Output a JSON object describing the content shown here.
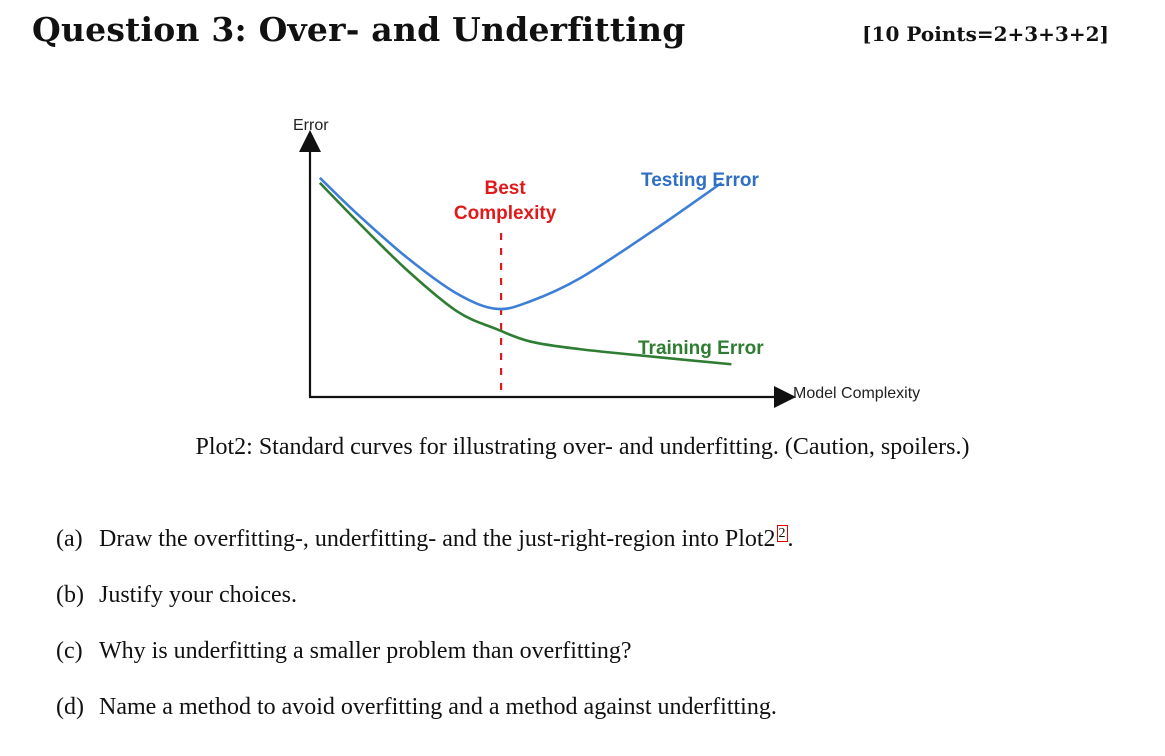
{
  "header": {
    "title": "Question 3: Over- and Underfitting",
    "points": "[10 Points=2+3+3+2]"
  },
  "chart_data": {
    "type": "line",
    "ylabel": "Error",
    "xlabel": "Model Complexity",
    "annotation_best": [
      "Best",
      "Complexity"
    ],
    "series": [
      {
        "name": "Testing Error",
        "color": "#3d7fd6",
        "points": [
          [
            0.02,
            0.87
          ],
          [
            0.1,
            0.72
          ],
          [
            0.2,
            0.55
          ],
          [
            0.3,
            0.41
          ],
          [
            0.38,
            0.35
          ],
          [
            0.45,
            0.38
          ],
          [
            0.55,
            0.47
          ],
          [
            0.7,
            0.66
          ],
          [
            0.84,
            0.85
          ]
        ]
      },
      {
        "name": "Training Error",
        "color": "#2e7d32",
        "points": [
          [
            0.02,
            0.85
          ],
          [
            0.1,
            0.69
          ],
          [
            0.2,
            0.5
          ],
          [
            0.3,
            0.34
          ],
          [
            0.38,
            0.27
          ],
          [
            0.45,
            0.22
          ],
          [
            0.55,
            0.19
          ],
          [
            0.7,
            0.16
          ],
          [
            0.86,
            0.13
          ]
        ]
      }
    ],
    "best_x": 0.39,
    "grid": false,
    "legend": "none"
  },
  "caption": "Plot2: Standard curves for illustrating over- and underfitting. (Caution, spoilers.)",
  "questions": [
    {
      "label": "(a)",
      "text": "Draw the overfitting-, underfitting- and the just-right-region into Plot2",
      "ref": "2",
      "suffix": "."
    },
    {
      "label": "(b)",
      "text": "Justify your choices.",
      "ref": "",
      "suffix": ""
    },
    {
      "label": "(c)",
      "text": "Why is underfitting a smaller problem than overfitting?",
      "ref": "",
      "suffix": ""
    },
    {
      "label": "(d)",
      "text": "Name a method to avoid overfitting and a method against underfitting.",
      "ref": "",
      "suffix": ""
    }
  ]
}
